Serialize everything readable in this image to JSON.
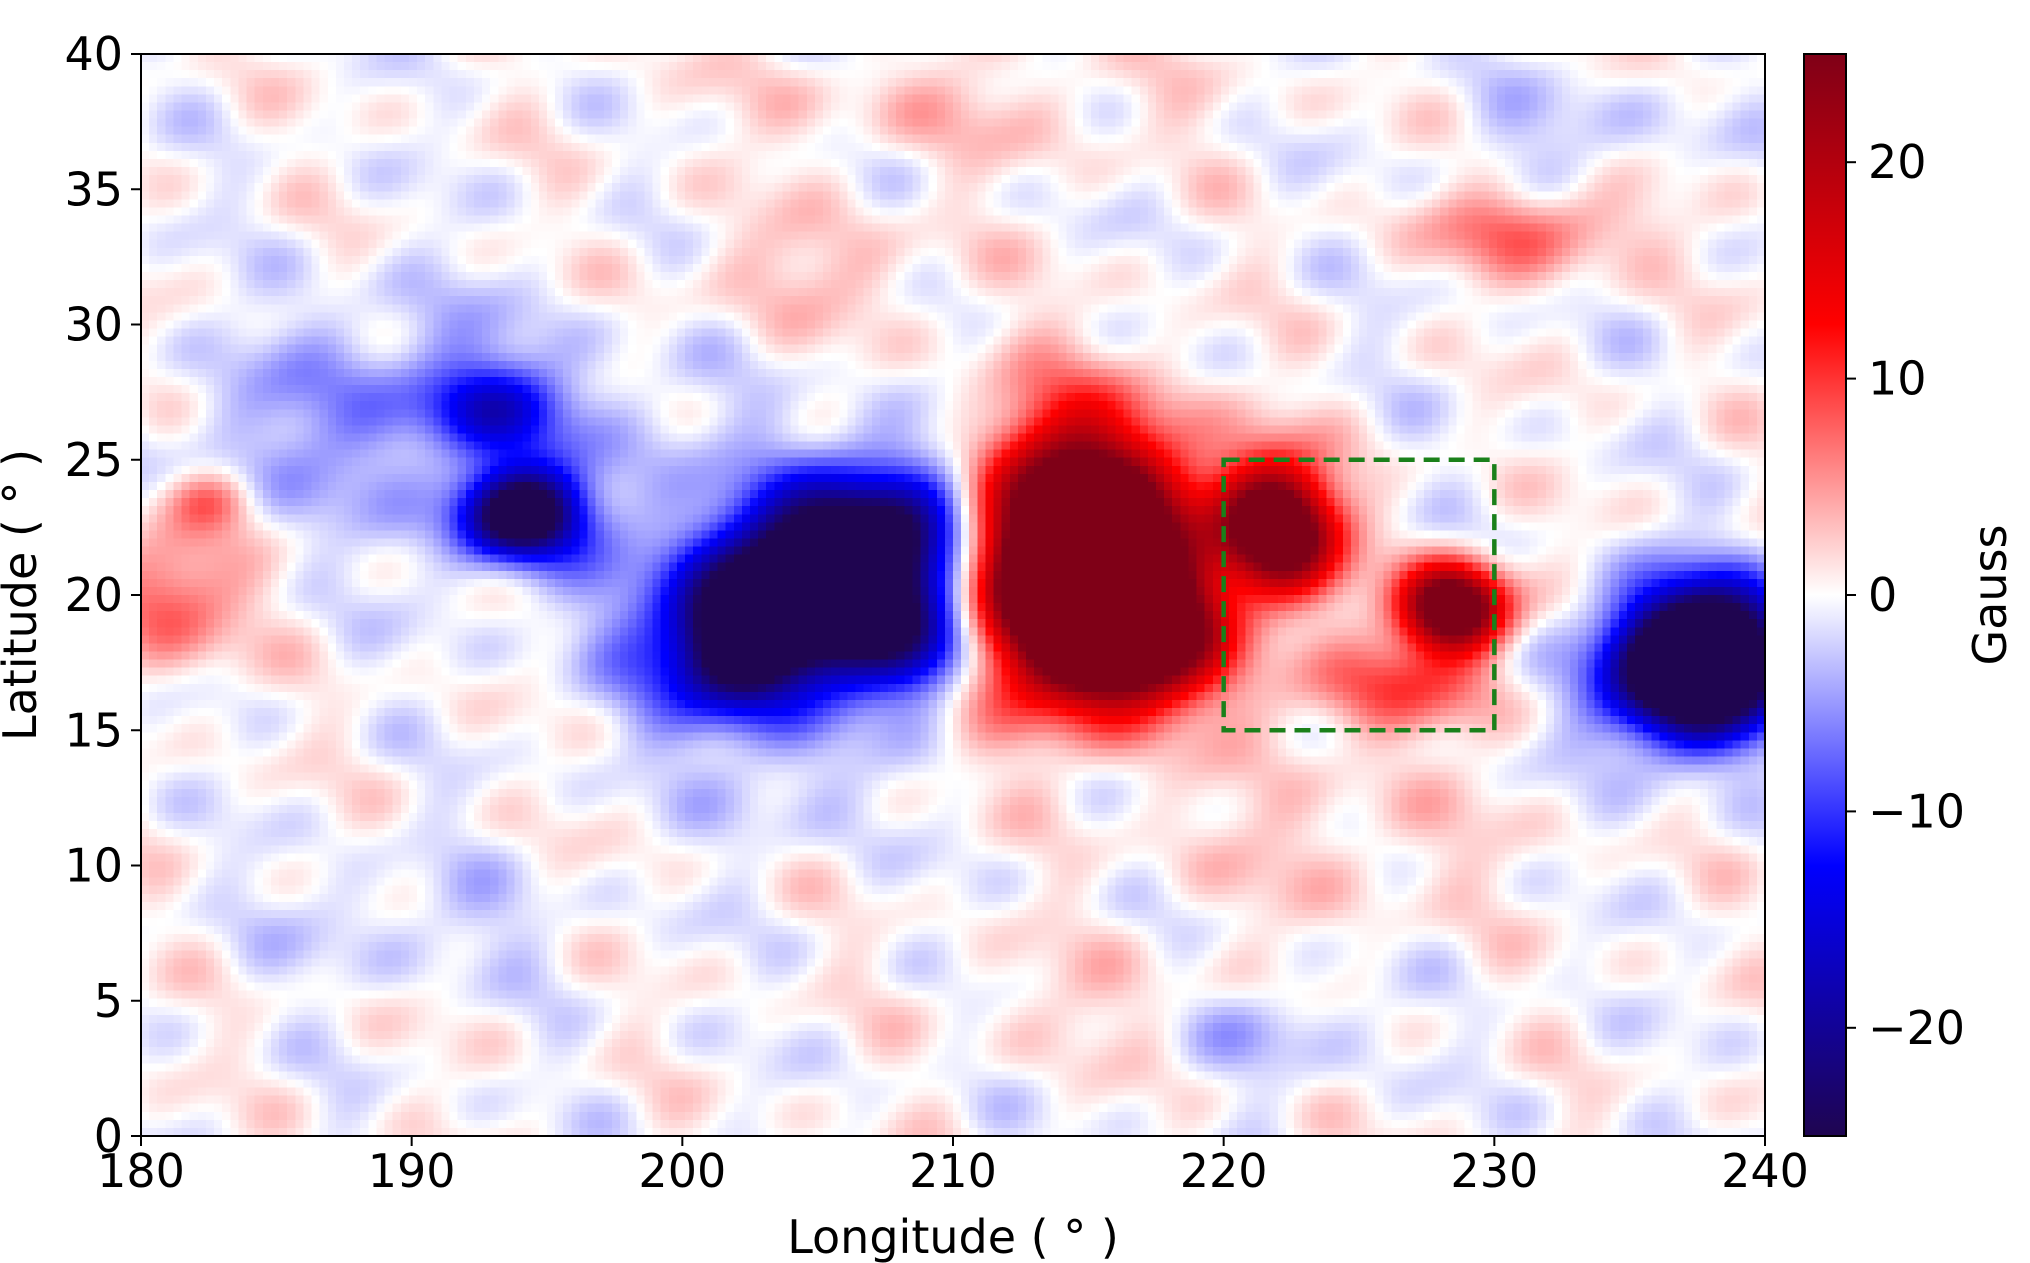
{
  "chart_data": {
    "type": "heatmap",
    "title": "",
    "xlabel": "Longitude ( $^\\circ$ )",
    "ylabel": "Latitude ( $^\\circ$ )",
    "xlabel_display": "Longitude ( ° )",
    "ylabel_display": "Latitude ( ° )",
    "xlim": [
      180,
      240
    ],
    "ylim": [
      0,
      40
    ],
    "xticks": [
      180,
      190,
      200,
      210,
      220,
      230,
      240
    ],
    "yticks": [
      0,
      5,
      10,
      15,
      20,
      25,
      30,
      35,
      40
    ],
    "grid": false,
    "colormap": "seismic",
    "colorbar": {
      "label": "Gauss",
      "range": [
        -25,
        25
      ],
      "ticks": [
        -20,
        -10,
        0,
        10,
        20
      ],
      "tick_labels": [
        "−20",
        "−10",
        "0",
        "10",
        "20"
      ],
      "colors": [
        "#1f0550",
        "#0000ff",
        "#ffffff",
        "#ff0000",
        "#7f0017"
      ]
    },
    "features": [
      {
        "lon": 205.5,
        "lat": 20.5,
        "rlon": 5.2,
        "rlat": 3.0,
        "value": -48,
        "rot": -25
      },
      {
        "lon": 202.0,
        "lat": 18.0,
        "rlon": 2.0,
        "rlat": 2.2,
        "value": -14,
        "rot": 0
      },
      {
        "lon": 209.0,
        "lat": 18.0,
        "rlon": 2.2,
        "rlat": 1.8,
        "value": -14,
        "rot": 0
      },
      {
        "lon": 194.0,
        "lat": 23.0,
        "rlon": 2.0,
        "rlat": 1.5,
        "value": -30,
        "rot": 0
      },
      {
        "lon": 193.0,
        "lat": 27.0,
        "rlon": 2.5,
        "rlat": 1.5,
        "value": -11,
        "rot": 0
      },
      {
        "lon": 188.0,
        "lat": 27.0,
        "rlon": 6.0,
        "rlat": 3.5,
        "value": -5,
        "rot": -15
      },
      {
        "lon": 196.0,
        "lat": 24.0,
        "rlon": 6.0,
        "rlat": 4.0,
        "value": -4,
        "rot": 0
      },
      {
        "lon": 214.5,
        "lat": 21.5,
        "rlon": 3.8,
        "rlat": 4.2,
        "value": 55,
        "rot": 0
      },
      {
        "lon": 216.5,
        "lat": 18.5,
        "rlon": 3.0,
        "rlat": 2.2,
        "value": 30,
        "rot": 0
      },
      {
        "lon": 222.0,
        "lat": 22.5,
        "rlon": 2.0,
        "rlat": 2.3,
        "value": 35,
        "rot": -20
      },
      {
        "lon": 228.5,
        "lat": 19.5,
        "rlon": 1.8,
        "rlat": 1.5,
        "value": 35,
        "rot": 0
      },
      {
        "lon": 226.0,
        "lat": 16.5,
        "rlon": 4.0,
        "rlat": 1.6,
        "value": 8,
        "rot": 0
      },
      {
        "lon": 237.5,
        "lat": 17.5,
        "rlon": 3.0,
        "rlat": 2.5,
        "value": -50,
        "rot": -10
      },
      {
        "lon": 181.0,
        "lat": 20.0,
        "rlon": 2.5,
        "rlat": 2.5,
        "value": 9,
        "rot": 0
      },
      {
        "lon": 182.5,
        "lat": 23.5,
        "rlon": 1.5,
        "rlat": 1.0,
        "value": 6,
        "rot": 0
      },
      {
        "lon": 231.5,
        "lat": 33.5,
        "rlon": 3.5,
        "rlat": 1.5,
        "value": 8,
        "rot": 0
      },
      {
        "lon": 205.0,
        "lat": 32.0,
        "rlon": 5.0,
        "rlat": 2.0,
        "value": 3,
        "rot": 0
      },
      {
        "lon": 224.0,
        "lat": 11.0,
        "rlon": 6.0,
        "rlat": 3.0,
        "value": 2.5,
        "rot": 0
      },
      {
        "lon": 222.0,
        "lat": 4.0,
        "rlon": 3.0,
        "rlat": 1.5,
        "value": -4,
        "rot": 0
      },
      {
        "lon": 204.0,
        "lat": 13.0,
        "rlon": 3.0,
        "rlat": 2.0,
        "value": -3,
        "rot": 0
      },
      {
        "lon": 210.0,
        "lat": 38.0,
        "rlon": 8.0,
        "rlat": 2.0,
        "value": 2.5,
        "rot": 0
      },
      {
        "lon": 190.0,
        "lat": 8.0,
        "rlon": 5.0,
        "rlat": 2.0,
        "value": -2.5,
        "rot": 0
      },
      {
        "lon": 215.0,
        "lat": 5.0,
        "rlon": 5.0,
        "rlat": 2.0,
        "value": 2.0,
        "rot": 0
      },
      {
        "lon": 233.0,
        "lat": 37.0,
        "rlon": 4.0,
        "rlat": 2.0,
        "value": -2.5,
        "rot": 0
      }
    ],
    "annotations": [
      {
        "type": "rectangle",
        "lon_range": [
          220,
          230
        ],
        "lat_range": [
          15,
          25
        ],
        "style": "dashed",
        "color": "#1a801a"
      }
    ]
  }
}
